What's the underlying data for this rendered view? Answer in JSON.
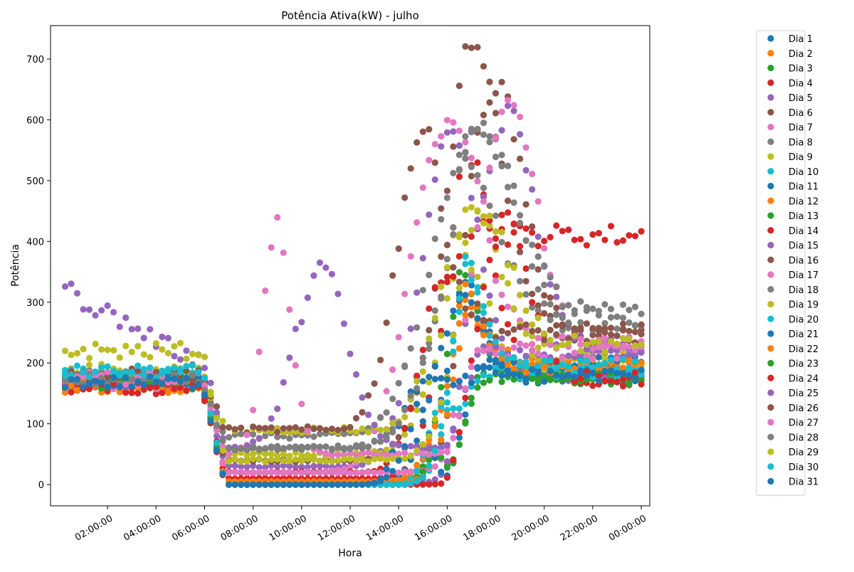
{
  "chart_data": {
    "type": "scatter",
    "title": "Potência Ativa(kW) - julho",
    "xlabel": "Hora",
    "ylabel": "Potência",
    "xlim": [
      -0.35,
      24.35
    ],
    "ylim": [
      -35,
      755
    ],
    "xticks": [
      {
        "value": 2,
        "label": "02:00:00"
      },
      {
        "value": 4,
        "label": "04:00:00"
      },
      {
        "value": 6,
        "label": "06:00:00"
      },
      {
        "value": 8,
        "label": "08:00:00"
      },
      {
        "value": 10,
        "label": "10:00:00"
      },
      {
        "value": 12,
        "label": "12:00:00"
      },
      {
        "value": 14,
        "label": "14:00:00"
      },
      {
        "value": 16,
        "label": "16:00:00"
      },
      {
        "value": 18,
        "label": "18:00:00"
      },
      {
        "value": 20,
        "label": "20:00:00"
      },
      {
        "value": 22,
        "label": "22:00:00"
      },
      {
        "value": 24,
        "label": "00:00:00"
      }
    ],
    "yticks": [
      0,
      100,
      200,
      300,
      400,
      500,
      600,
      700
    ],
    "grid": false,
    "legend_position": "right-outside",
    "x_sample_step_hours": 0.25,
    "series": [
      {
        "name": "Dia 1",
        "color": "#1f77b4",
        "base": 165,
        "plateau": 175,
        "min_level": 0,
        "peak": 340,
        "peak_hour": 16.6,
        "peak_width": 1.2
      },
      {
        "name": "Dia 2",
        "color": "#ff7f0e",
        "base": 162,
        "plateau": 180,
        "min_level": 5,
        "peak": 300,
        "peak_hour": 16.6,
        "peak_width": 1.3
      },
      {
        "name": "Dia 3",
        "color": "#2ca02c",
        "base": 168,
        "plateau": 175,
        "min_level": 0,
        "peak": 380,
        "peak_hour": 16.5,
        "peak_width": 1.0
      },
      {
        "name": "Dia 4",
        "color": "#d62728",
        "base": 158,
        "plateau": 172,
        "min_level": 10,
        "peak": 550,
        "peak_hour": 16.8,
        "peak_width": 1.4
      },
      {
        "name": "Dia 5",
        "color": "#9467bd",
        "base": 168,
        "plateau": 180,
        "min_level": 30,
        "peak": 640,
        "peak_hour": 16.0,
        "peak_width": 1.6
      },
      {
        "name": "Dia 6",
        "color": "#8c564b",
        "base": 175,
        "plateau": 250,
        "min_level": 40,
        "peak": 720,
        "peak_hour": 17.0,
        "peak_width": 1.8
      },
      {
        "name": "Dia 7",
        "color": "#e377c2",
        "base": 172,
        "plateau": 230,
        "min_level": 20,
        "peak": 700,
        "peak_hour": 15.8,
        "peak_width": 1.9
      },
      {
        "name": "Dia 8",
        "color": "#7f7f7f",
        "base": 178,
        "plateau": 220,
        "min_level": 60,
        "peak": 590,
        "peak_hour": 17.4,
        "peak_width": 2.2
      },
      {
        "name": "Dia 9",
        "color": "#bcbd22",
        "base": 190,
        "plateau": 210,
        "min_level": 50,
        "peak": 450,
        "peak_hour": 17.0,
        "peak_width": 1.8
      },
      {
        "name": "Dia 10",
        "color": "#17becf",
        "base": 180,
        "plateau": 190,
        "min_level": 0,
        "peak": 360,
        "peak_hour": 16.8,
        "peak_width": 1.0
      },
      {
        "name": "Dia 11",
        "color": "#1f77b4",
        "base": 170,
        "plateau": 185,
        "min_level": 0,
        "peak": 350,
        "peak_hour": 16.2,
        "peak_width": 1.3
      },
      {
        "name": "Dia 12",
        "color": "#ff7f0e",
        "base": 160,
        "plateau": 200,
        "min_level": 5,
        "peak": 330,
        "peak_hour": 16.6,
        "peak_width": 1.2
      },
      {
        "name": "Dia 13",
        "color": "#2ca02c",
        "base": 165,
        "plateau": 178,
        "min_level": 0,
        "peak": 160,
        "peak_hour": 15.5,
        "peak_width": 0.6
      },
      {
        "name": "Dia 14",
        "color": "#d62728",
        "base": 165,
        "plateau": 410,
        "min_level": 20,
        "peak": 550,
        "peak_hour": 15.8,
        "peak_width": 1.3
      },
      {
        "name": "Dia 15",
        "color": "#9467bd",
        "base": 170,
        "plateau": 230,
        "min_level": 0,
        "peak": 610,
        "peak_hour": 18.5,
        "peak_width": 1.5
      },
      {
        "name": "Dia 16",
        "color": "#8c564b",
        "base": 170,
        "plateau": 240,
        "min_level": 0,
        "peak": 660,
        "peak_hour": 18.0,
        "peak_width": 1.6
      },
      {
        "name": "Dia 17",
        "color": "#e377c2",
        "base": 165,
        "plateau": 220,
        "min_level": 20,
        "peak": 620,
        "peak_hour": 18.6,
        "peak_width": 1.6
      },
      {
        "name": "Dia 18",
        "color": "#7f7f7f",
        "base": 170,
        "plateau": 270,
        "min_level": 80,
        "peak": 560,
        "peak_hour": 16.5,
        "peak_width": 2.0
      },
      {
        "name": "Dia 19",
        "color": "#bcbd22",
        "base": 175,
        "plateau": 200,
        "min_level": 90,
        "peak": 410,
        "peak_hour": 16.4,
        "peak_width": 1.4
      },
      {
        "name": "Dia 20",
        "color": "#17becf",
        "base": 180,
        "plateau": 185,
        "min_level": 0,
        "peak": 240,
        "peak_hour": 15.8,
        "peak_width": 0.8
      },
      {
        "name": "Dia 21",
        "color": "#1f77b4",
        "base": 172,
        "plateau": 200,
        "min_level": 0,
        "peak": 280,
        "peak_hour": 14.6,
        "peak_width": 0.8
      },
      {
        "name": "Dia 22",
        "color": "#ff7f0e",
        "base": 165,
        "plateau": 195,
        "min_level": 0,
        "peak": 280,
        "peak_hour": 16.8,
        "peak_width": 1.2
      },
      {
        "name": "Dia 23",
        "color": "#2ca02c",
        "base": 168,
        "plateau": 175,
        "min_level": 0,
        "peak": 160,
        "peak_hour": 15.5,
        "peak_width": 0.5
      },
      {
        "name": "Dia 24",
        "color": "#d62728",
        "base": 160,
        "plateau": 175,
        "min_level": 0,
        "peak": 450,
        "peak_hour": 18.5,
        "peak_width": 1.2
      },
      {
        "name": "Dia 25",
        "color": "#9467bd",
        "base": 320,
        "plateau": 220,
        "min_level": 60,
        "peak": 430,
        "peak_hour": 10.8,
        "peak_width": 1.5
      },
      {
        "name": "Dia 26",
        "color": "#8c564b",
        "base": 180,
        "plateau": 250,
        "min_level": 90,
        "peak": 640,
        "peak_hour": 15.0,
        "peak_width": 1.5
      },
      {
        "name": "Dia 27",
        "color": "#e377c2",
        "base": 175,
        "plateau": 220,
        "min_level": 50,
        "peak": 510,
        "peak_hour": 9.0,
        "peak_width": 0.8
      },
      {
        "name": "Dia 28",
        "color": "#7f7f7f",
        "base": 172,
        "plateau": 280,
        "min_level": 60,
        "peak": 580,
        "peak_hour": 17.3,
        "peak_width": 2.2
      },
      {
        "name": "Dia 29",
        "color": "#bcbd22",
        "base": 220,
        "plateau": 230,
        "min_level": 40,
        "peak": 440,
        "peak_hour": 17.5,
        "peak_width": 1.6
      },
      {
        "name": "Dia 30",
        "color": "#17becf",
        "base": 185,
        "plateau": 195,
        "min_level": 0,
        "peak": 360,
        "peak_hour": 16.7,
        "peak_width": 1.0
      },
      {
        "name": "Dia 31",
        "color": "#1f77b4",
        "base": 168,
        "plateau": 180,
        "min_level": 0,
        "peak": 300,
        "peak_hour": 15.5,
        "peak_width": 1.2
      }
    ]
  }
}
